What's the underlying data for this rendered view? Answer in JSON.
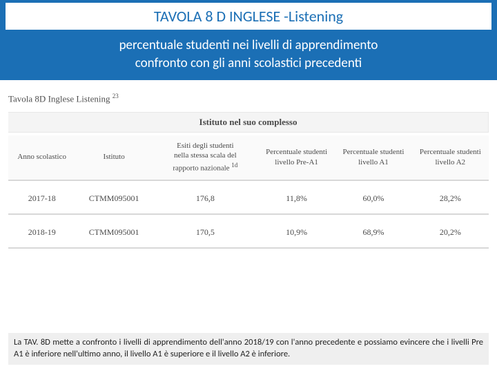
{
  "header": {
    "title": "TAVOLA 8 D  INGLESE -Listening",
    "subtitle_line1": "percentuale studenti nei livelli di apprendimento",
    "subtitle_line2": "confronto con gli anni scolastici precedenti"
  },
  "table": {
    "intro_prefix": "Tavola 8D Inglese Listening",
    "intro_sup": "23",
    "group_header": "Istituto nel suo complesso",
    "columns": {
      "c0": "Anno scolastico",
      "c1": "Istituto",
      "c2": "Esiti degli studenti\nnella stessa scala del\nrapporto nazionale",
      "c2_sup": "1d",
      "c3": "Percentuale studenti\nlivello Pre-A1",
      "c4": "Percentuale studenti\nlivello A1",
      "c5": "Percentuale studenti\nlivello A2"
    },
    "rows": [
      {
        "anno": "2017-18",
        "istituto": "CTMM095001",
        "esiti": "176,8",
        "preA1": "11,8%",
        "a1": "60,0%",
        "a2": "28,2%"
      },
      {
        "anno": "2018-19",
        "istituto": "CTMM095001",
        "esiti": "170,5",
        "preA1": "10,9%",
        "a1": "68,9%",
        "a2": "20,2%"
      }
    ],
    "col_widths": [
      "14%",
      "16%",
      "22%",
      "16%",
      "16%",
      "16%"
    ]
  },
  "footer": {
    "text": "La TAV. 8D mette a confronto i livelli di apprendimento dell'anno 2018/19 con l'anno precedente e possiamo evincere che i livelli Pre A1 è inferiore nell'ultimo anno, il livello A1 è superiore e il livello A2 è inferiore."
  },
  "colors": {
    "banner": "#1b6fb5",
    "title_text": "#1b6fb5",
    "table_text": "#4a4a4a",
    "footer_bg": "#efefef"
  }
}
